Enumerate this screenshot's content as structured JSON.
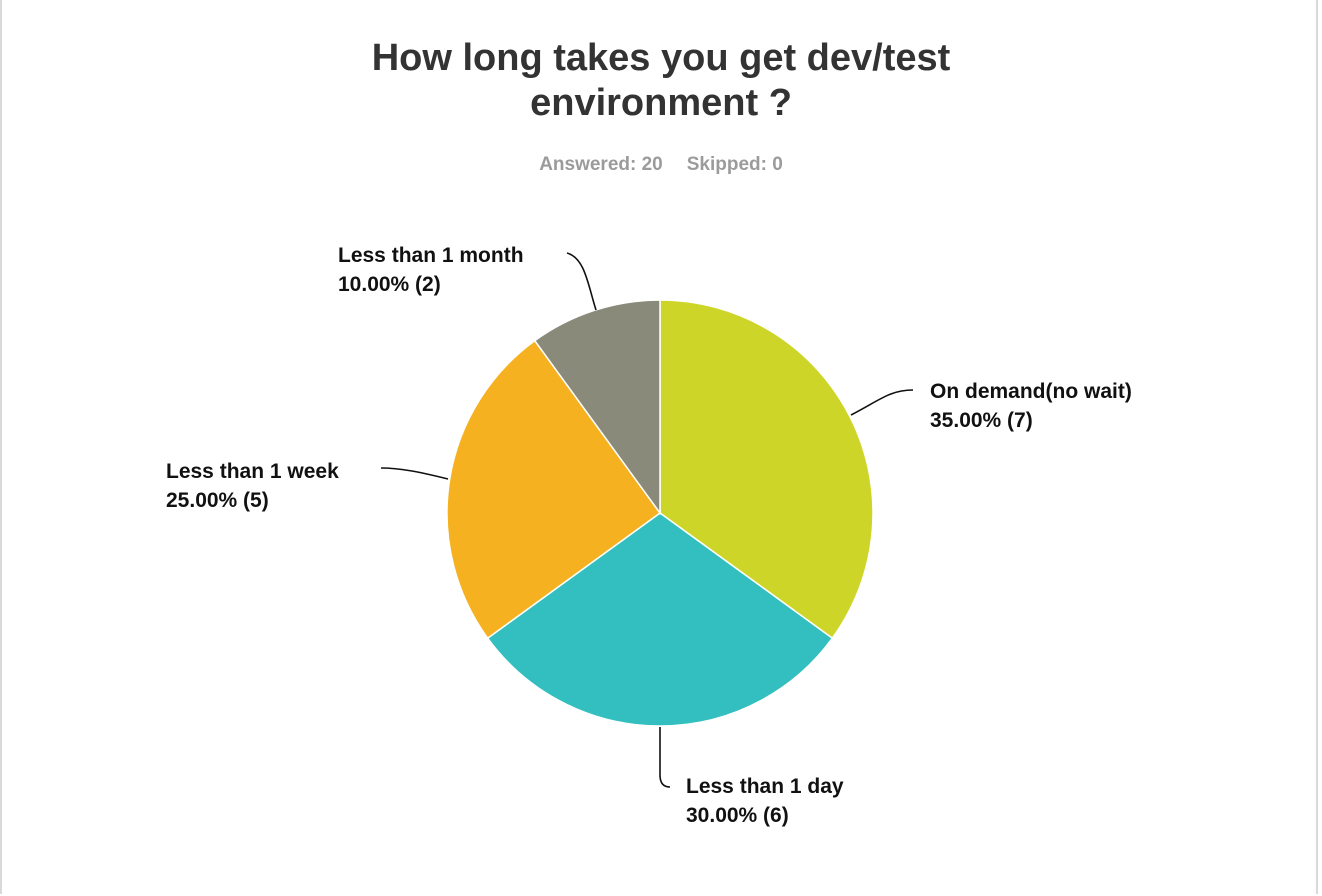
{
  "header": {
    "title_line1": "How long takes you get dev/test",
    "title_line2": "environment ?",
    "answered": "Answered: 20",
    "skipped": "Skipped: 0"
  },
  "chart_data": {
    "type": "pie",
    "title": "How long takes you get dev/test environment ?",
    "slices": [
      {
        "label": "On demand(no wait)",
        "value": 35.0,
        "count": 7,
        "display": "35.00% (7)",
        "color": "#cdd628"
      },
      {
        "label": "Less than 1 day",
        "value": 30.0,
        "count": 6,
        "display": "30.00% (6)",
        "color": "#33bebf"
      },
      {
        "label": "Less than 1 week",
        "value": 25.0,
        "count": 5,
        "display": "25.00% (5)",
        "color": "#f5b120"
      },
      {
        "label": "Less than 1 month",
        "value": 10.0,
        "count": 2,
        "display": "10.00% (2)",
        "color": "#8a8a7a"
      }
    ]
  }
}
